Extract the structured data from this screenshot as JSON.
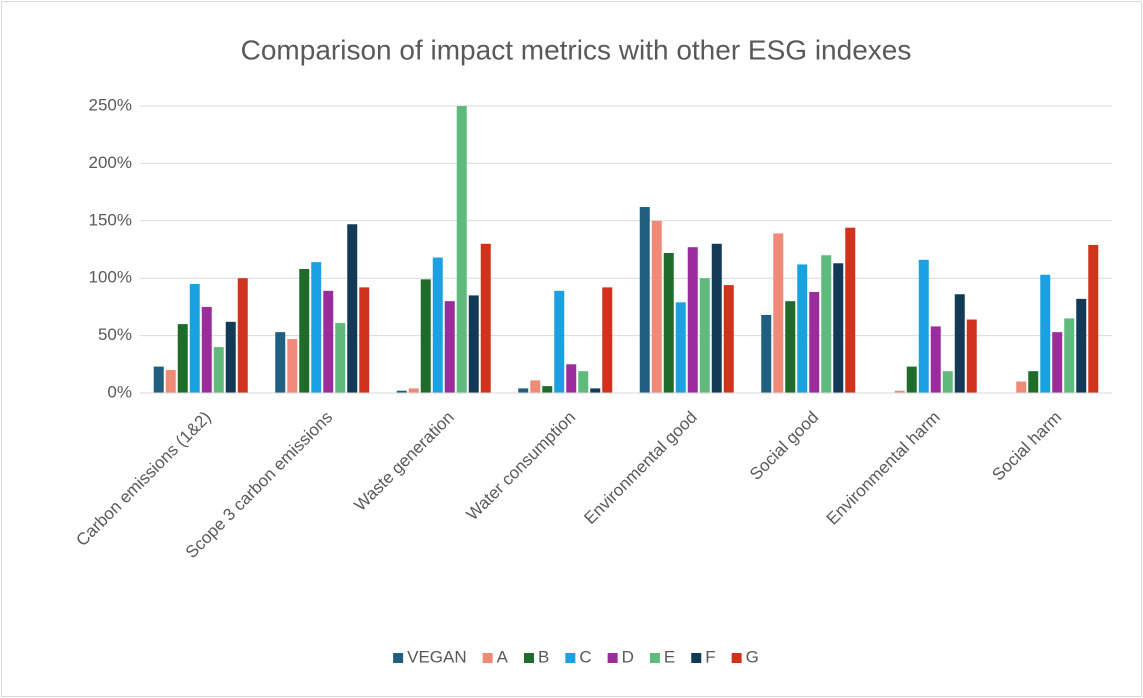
{
  "chart_data": {
    "type": "bar",
    "title": "Comparison of impact metrics with other ESG indexes",
    "categories": [
      "Carbon emissions (1&2)",
      "Scope 3 carbon emissions",
      "Waste generation",
      "Water consumption",
      "Environmental good",
      "Social good",
      "Environmental harm",
      "Social harm"
    ],
    "series": [
      {
        "name": "VEGAN",
        "color": "#215f80",
        "values": [
          23,
          53,
          2,
          4,
          162,
          68,
          0,
          0
        ]
      },
      {
        "name": "A",
        "color": "#f08a78",
        "values": [
          20,
          47,
          4,
          11,
          150,
          139,
          2,
          10
        ]
      },
      {
        "name": "B",
        "color": "#1e6b2a",
        "values": [
          60,
          108,
          99,
          6,
          122,
          80,
          23,
          19
        ]
      },
      {
        "name": "C",
        "color": "#1ba1e2",
        "values": [
          95,
          114,
          118,
          89,
          79,
          112,
          116,
          103
        ]
      },
      {
        "name": "D",
        "color": "#9b2c9c",
        "values": [
          75,
          89,
          80,
          25,
          127,
          88,
          58,
          53
        ]
      },
      {
        "name": "E",
        "color": "#5fba7d",
        "values": [
          40,
          61,
          250,
          19,
          100,
          120,
          19,
          65
        ]
      },
      {
        "name": "F",
        "color": "#123a56",
        "values": [
          62,
          147,
          85,
          4,
          130,
          113,
          86,
          82
        ]
      },
      {
        "name": "G",
        "color": "#d0321c",
        "values": [
          100,
          92,
          130,
          92,
          94,
          144,
          64,
          129
        ]
      }
    ],
    "ylim": [
      0,
      250
    ],
    "yticks": [
      {
        "value": 0,
        "label": "0%"
      },
      {
        "value": 50,
        "label": "50%"
      },
      {
        "value": 100,
        "label": "100%"
      },
      {
        "value": 150,
        "label": "150%"
      },
      {
        "value": 200,
        "label": "200%"
      },
      {
        "value": 250,
        "label": "250%"
      }
    ],
    "grid": true,
    "legend": "bottom"
  }
}
